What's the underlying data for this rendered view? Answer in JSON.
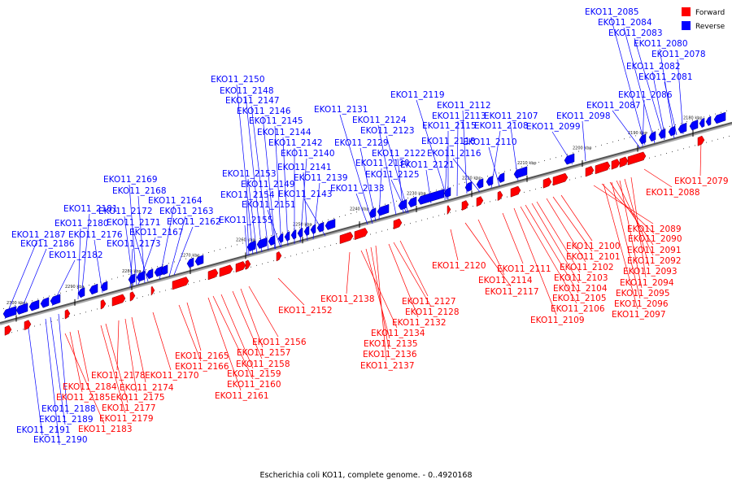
{
  "caption": "Escherichia coli KO11, complete genome. - 0..4920168",
  "legend": {
    "forward": {
      "label": "Forward",
      "color": "#ff0000"
    },
    "reverse": {
      "label": "Reverse",
      "color": "#0000ff"
    }
  },
  "kbp_ticks": [
    "2300 kbp",
    "2290 kbp",
    "2280 kbp",
    "2270 kbp",
    "2260 kbp",
    "2250 kbp",
    "2240 kbp",
    "2230 kbp",
    "2220 kbp",
    "2210 kbp",
    "2200 kbp",
    "2190 kbp",
    "2180 kbp"
  ],
  "reverse_labels": [
    "EKO11_2085",
    "EKO11_2084",
    "EKO11_2083",
    "EKO11_2080",
    "EKO11_2078",
    "EKO11_2082",
    "EKO11_2081",
    "EKO11_2086",
    "EKO11_2087",
    "EKO11_2098",
    "EKO11_2099",
    "EKO11_2119",
    "EKO11_2112",
    "EKO11_2113",
    "EKO11_2107",
    "EKO11_2115",
    "EKO11_2108",
    "EKO11_2118",
    "EKO11_2110",
    "EKO11_2116",
    "EKO11_2121",
    "EKO11_2131",
    "EKO11_2124",
    "EKO11_2123",
    "EKO11_2129",
    "EKO11_2122",
    "EKO11_2130",
    "EKO11_2125",
    "EKO11_2133",
    "EKO11_2150",
    "EKO11_2148",
    "EKO11_2147",
    "EKO11_2146",
    "EKO11_2145",
    "EKO11_2144",
    "EKO11_2142",
    "EKO11_2140",
    "EKO11_2141",
    "EKO11_2139",
    "EKO11_2143",
    "EKO11_2153",
    "EKO11_2149",
    "EKO11_2154",
    "EKO11_2151",
    "EKO11_2155",
    "EKO11_2169",
    "EKO11_2168",
    "EKO11_2164",
    "EKO11_2172",
    "EKO11_2163",
    "EKO11_2171",
    "EKO11_2162",
    "EKO11_2167",
    "EKO11_2173",
    "EKO11_2181",
    "EKO11_2180",
    "EKO11_2187",
    "EKO11_2176",
    "EKO11_2186",
    "EKO11_2182",
    "EKO11_2188",
    "EKO11_2189",
    "EKO11_2191",
    "EKO11_2190"
  ],
  "forward_labels": [
    "EKO11_2079",
    "EKO11_2088",
    "EKO11_2089",
    "EKO11_2090",
    "EKO11_2091",
    "EKO11_2092",
    "EKO11_2093",
    "EKO11_2094",
    "EKO11_2095",
    "EKO11_2096",
    "EKO11_2097",
    "EKO11_2100",
    "EKO11_2101",
    "EKO11_2102",
    "EKO11_2103",
    "EKO11_2104",
    "EKO11_2105",
    "EKO11_2106",
    "EKO11_2109",
    "EKO11_2111",
    "EKO11_2114",
    "EKO11_2117",
    "EKO11_2120",
    "EKO11_2127",
    "EKO11_2128",
    "EKO11_2132",
    "EKO11_2138",
    "EKO11_2134",
    "EKO11_2135",
    "EKO11_2136",
    "EKO11_2137",
    "EKO11_2152",
    "EKO11_2156",
    "EKO11_2157",
    "EKO11_2158",
    "EKO11_2159",
    "EKO11_2160",
    "EKO11_2161",
    "EKO11_2165",
    "EKO11_2166",
    "EKO11_2170",
    "EKO11_2174",
    "EKO11_2175",
    "EKO11_2178",
    "EKO11_2177",
    "EKO11_2179",
    "EKO11_2184",
    "EKO11_2185",
    "EKO11_2183"
  ]
}
